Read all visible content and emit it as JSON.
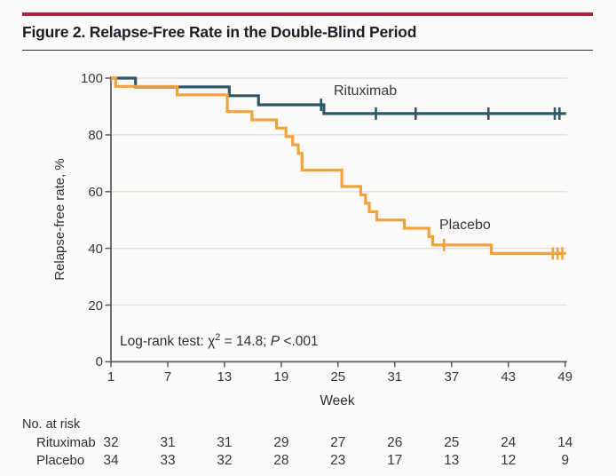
{
  "figure": {
    "title": "Figure 2. Relapse-Free Rate in the Double-Blind Period",
    "accent_color": "#a7233a"
  },
  "chart_data": {
    "type": "line",
    "subtype": "kaplan-meier-step",
    "title": "Relapse-Free Rate in the Double-Blind Period",
    "xlabel": "Week",
    "ylabel": "Relapse-free rate, %",
    "xlim": [
      1,
      49.2
    ],
    "ylim": [
      0,
      100
    ],
    "x_ticks": [
      1,
      7,
      13,
      19,
      25,
      31,
      37,
      43,
      49
    ],
    "y_ticks": [
      0,
      20,
      40,
      60,
      80,
      100
    ],
    "grid": "horizontal",
    "legend_position": "inline-labels",
    "annotation": {
      "text": "Log-rank test: χ2 = 14.8; P <.001",
      "prefix": "Log-rank test: χ",
      "superscript": "2",
      "middle": " = 14.8; ",
      "p_label": "P",
      "suffix": " <.001"
    },
    "series": [
      {
        "name": "Rituximab",
        "color": "#2d5967",
        "steps": [
          [
            1,
            100
          ],
          [
            3.6,
            96.9
          ],
          [
            13.5,
            93.8
          ],
          [
            16.6,
            90.6
          ],
          [
            23.5,
            87.5
          ]
        ],
        "end_week": 49.1,
        "censors": [
          [
            23.2,
            90.6
          ],
          [
            29.0,
            87.5
          ],
          [
            33.2,
            87.5
          ],
          [
            40.9,
            87.5
          ],
          [
            47.9,
            87.5
          ],
          [
            48.4,
            87.5
          ]
        ]
      },
      {
        "name": "Placebo",
        "color": "#f2a23d",
        "steps": [
          [
            1,
            100
          ],
          [
            1.5,
            97.1
          ],
          [
            8.0,
            94.1
          ],
          [
            13.3,
            88.2
          ],
          [
            15.9,
            85.3
          ],
          [
            18.5,
            82.4
          ],
          [
            19.5,
            79.4
          ],
          [
            20.2,
            76.5
          ],
          [
            20.8,
            73.5
          ],
          [
            21.2,
            67.6
          ],
          [
            25.4,
            61.8
          ],
          [
            27.4,
            58.8
          ],
          [
            27.9,
            55.9
          ],
          [
            28.3,
            52.9
          ],
          [
            29.1,
            50.0
          ],
          [
            32.0,
            47.1
          ],
          [
            34.6,
            44.1
          ],
          [
            35.0,
            41.2
          ],
          [
            41.2,
            38.2
          ]
        ],
        "end_week": 49.1,
        "censors": [
          [
            36.2,
            41.2
          ],
          [
            47.7,
            38.2
          ],
          [
            48.2,
            38.2
          ],
          [
            48.7,
            38.2
          ]
        ]
      }
    ],
    "at_risk": {
      "title": "No. at risk",
      "weeks": [
        1,
        7,
        13,
        19,
        25,
        31,
        37,
        43,
        49
      ],
      "rows": [
        {
          "name": "Rituximab",
          "counts": [
            32,
            31,
            31,
            29,
            27,
            26,
            25,
            24,
            14
          ]
        },
        {
          "name": "Placebo",
          "counts": [
            34,
            33,
            32,
            28,
            23,
            17,
            13,
            12,
            9
          ]
        }
      ]
    },
    "style": {
      "grid_color": "#dcdcda",
      "axis_color": "#58585a"
    }
  }
}
